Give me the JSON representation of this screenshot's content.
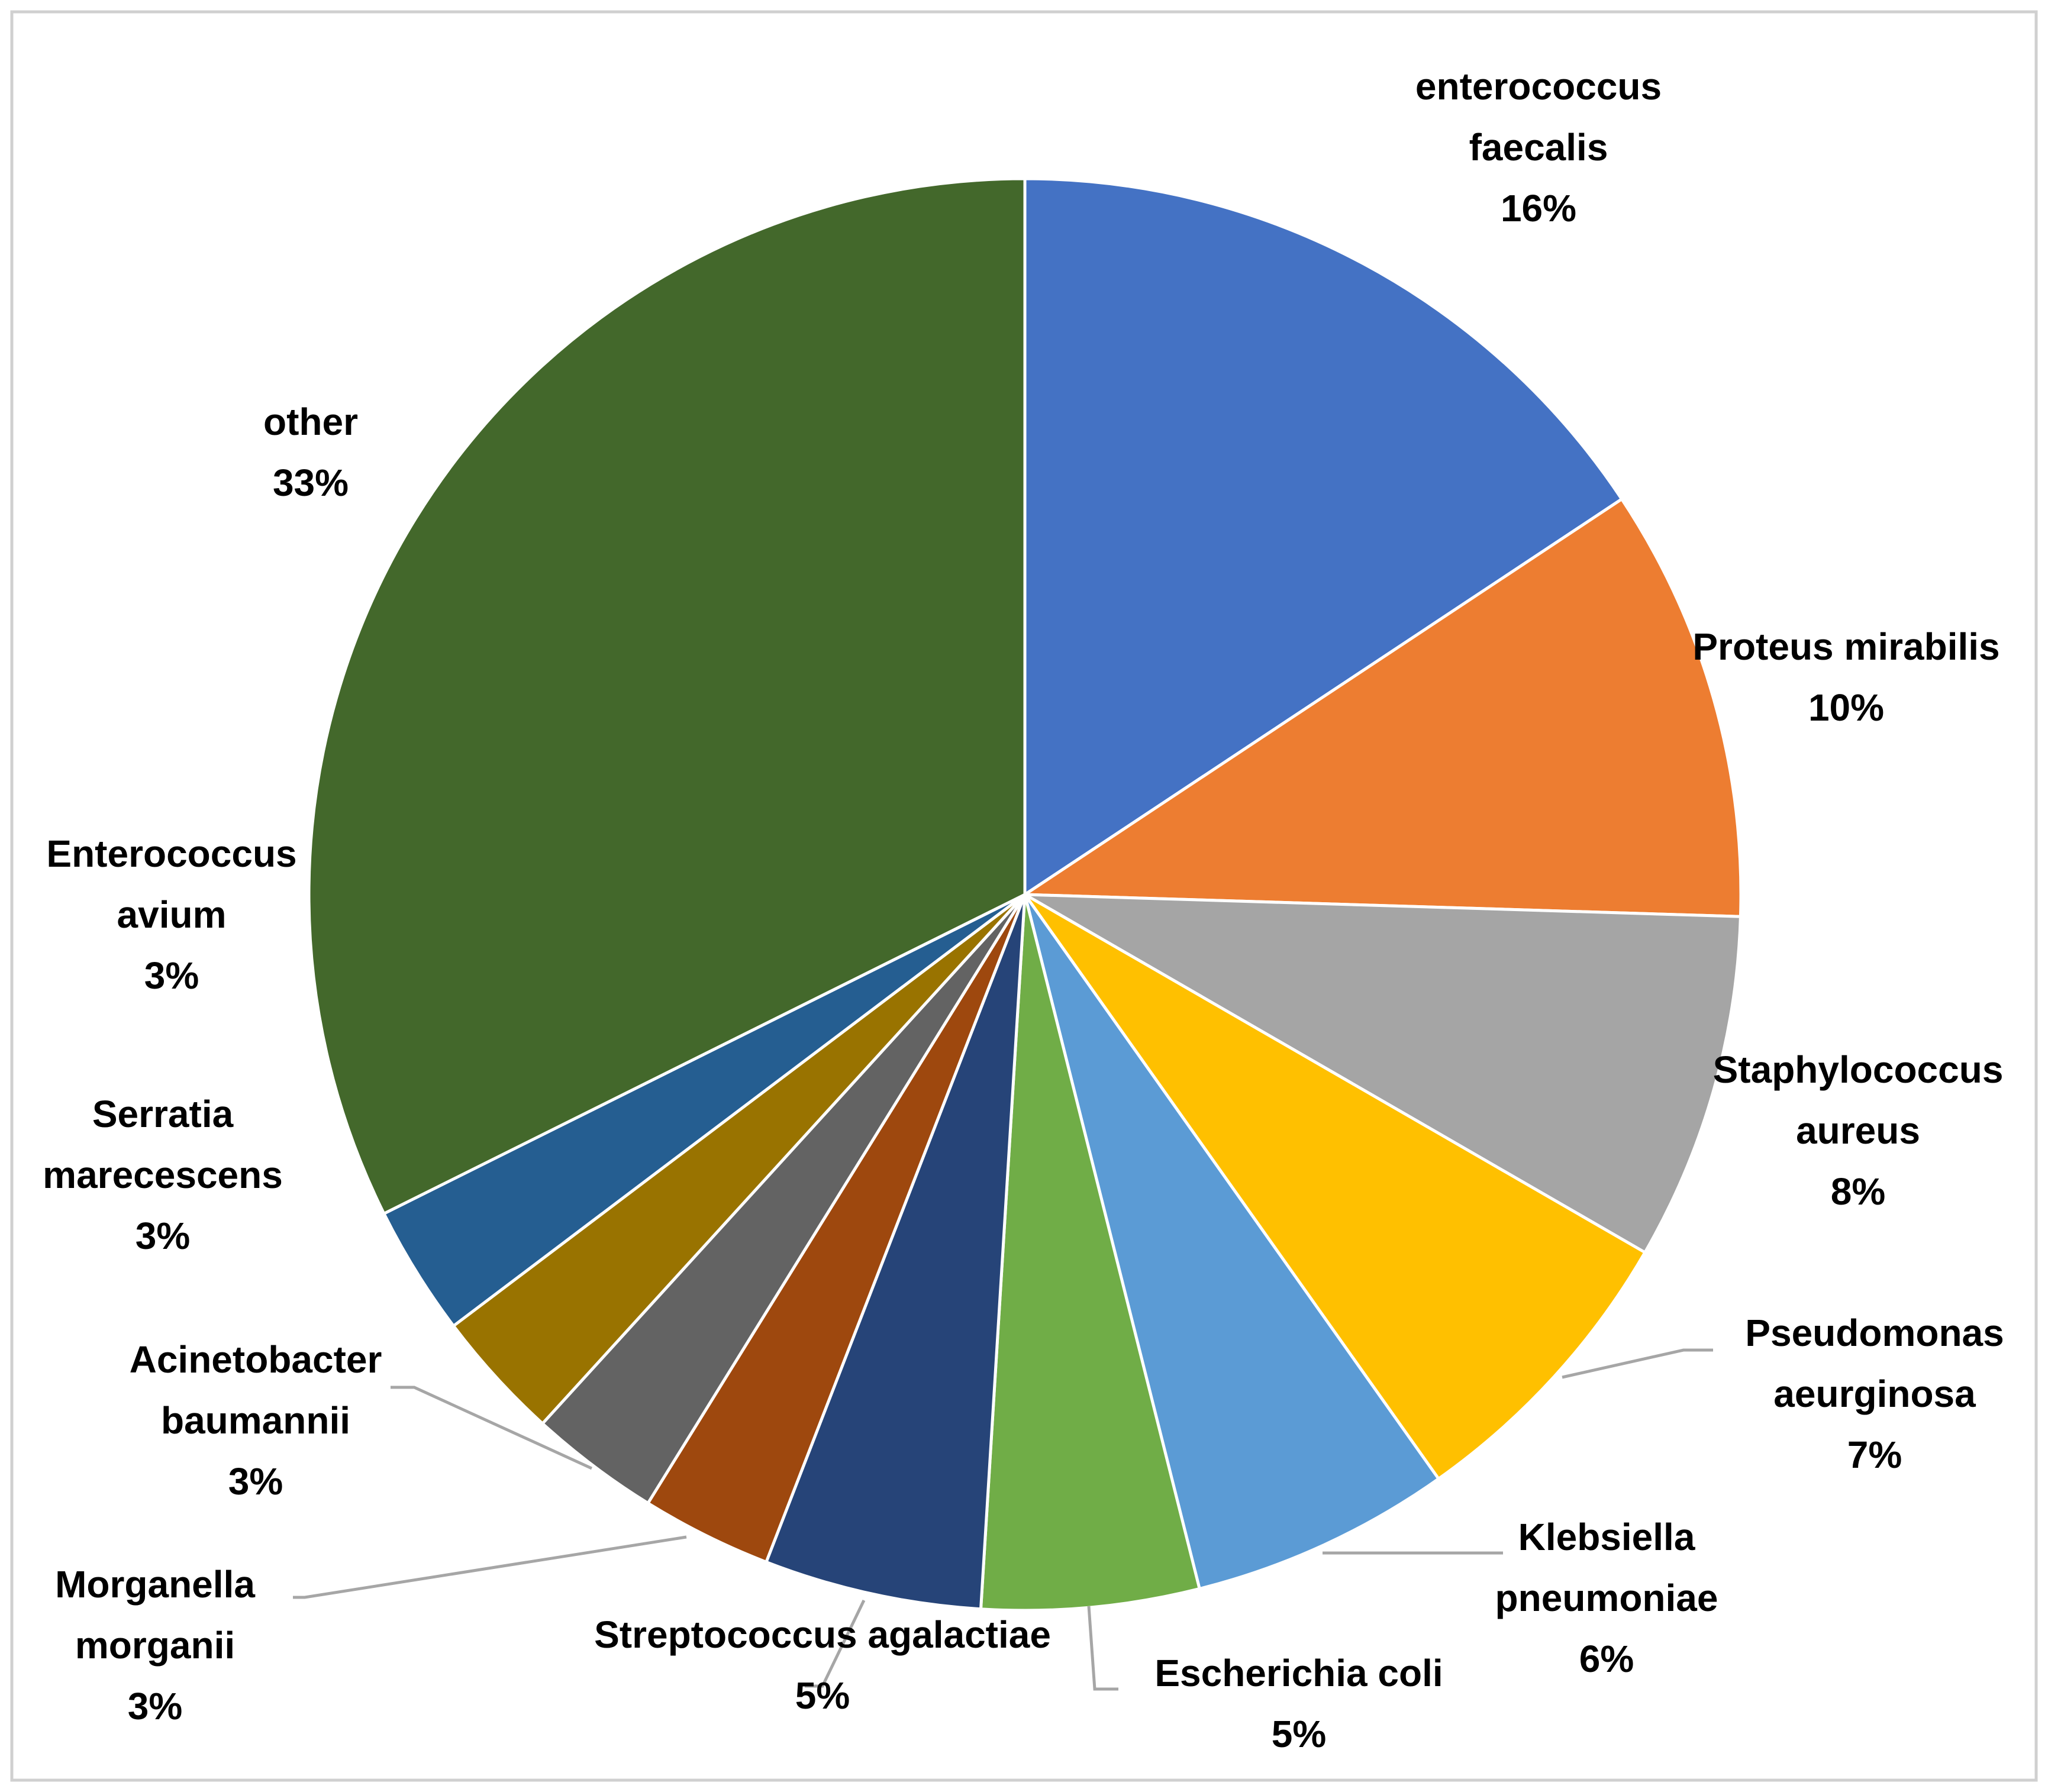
{
  "chart_data": {
    "type": "pie",
    "title": "",
    "start_angle_deg": 0,
    "direction": "clockwise",
    "slices": [
      {
        "label": [
          "enterococcus",
          "faecalis"
        ],
        "value": 16,
        "pct": "16%",
        "color": "#4472C4"
      },
      {
        "label": [
          "Proteus mirabilis"
        ],
        "value": 10,
        "pct": "10%",
        "color": "#ED7D31"
      },
      {
        "label": [
          "Staphylococcus",
          "aureus"
        ],
        "value": 8,
        "pct": "8%",
        "color": "#A5A5A5"
      },
      {
        "label": [
          "Pseudomonas",
          "aeurginosa"
        ],
        "value": 7,
        "pct": "7%",
        "color": "#FFC000"
      },
      {
        "label": [
          "Klebsiella",
          "pneumoniae"
        ],
        "value": 6,
        "pct": "6%",
        "color": "#5B9BD5"
      },
      {
        "label": [
          "Escherichia coli"
        ],
        "value": 5,
        "pct": "5%",
        "color": "#70AD47"
      },
      {
        "label": [
          "Streptococcus agalactiae"
        ],
        "value": 5,
        "pct": "5%",
        "color": "#264478"
      },
      {
        "label": [
          "Morganella",
          "morganii"
        ],
        "value": 3,
        "pct": "3%",
        "color": "#9E480E"
      },
      {
        "label": [
          "Acinetobacter",
          "baumannii"
        ],
        "value": 3,
        "pct": "3%",
        "color": "#636363"
      },
      {
        "label": [
          "Serratia",
          "marecescens"
        ],
        "value": 3,
        "pct": "3%",
        "color": "#997300"
      },
      {
        "label": [
          "Enterococcus",
          "avium"
        ],
        "value": 3,
        "pct": "3%",
        "color": "#255E91"
      },
      {
        "label": [
          "other"
        ],
        "value": 33,
        "pct": "33%",
        "color": "#43682B"
      }
    ]
  }
}
